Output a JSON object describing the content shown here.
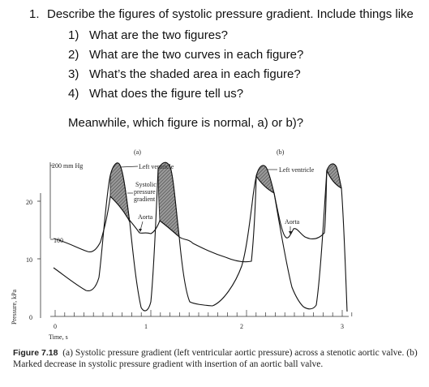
{
  "question": {
    "number": "1.",
    "text": "Describe the figures of systolic pressure gradient. Include things like",
    "items": [
      {
        "num": "1)",
        "text": "What are the two figures?"
      },
      {
        "num": "2)",
        "text": "What are the two curves in each figure?"
      },
      {
        "num": "3)",
        "text": "What’s the shaded area in each figure?"
      },
      {
        "num": "4)",
        "text": "What does the figure tell us?"
      }
    ],
    "followup": "Meanwhile, which figure is normal, a) or b)?"
  },
  "figure": {
    "panel_a": "(a)",
    "panel_b": "(b)",
    "mmhg_200": "200 mm Hg",
    "mmhg_100": "100",
    "kpa_20": "20",
    "kpa_10": "10",
    "zero": "0",
    "time_1": "1",
    "time_2": "2",
    "time_3": "3",
    "y_title": "Pressure, kPa",
    "x_title": "Time, s",
    "a_left_ventricle": "Left ventricle",
    "a_systolic_1": "Systolic",
    "a_systolic_2": "pressure",
    "a_systolic_3": "gradient",
    "a_aorta": "Aorta",
    "b_left_ventricle": "Left ventricle",
    "b_aorta": "Aorta"
  },
  "caption": {
    "label": "Figure 7.18",
    "text": "(a) Systolic pressure gradient (left ventricular aortic pressure) across a stenotic aortic valve. (b) Marked decrease in systolic pressure gradient with insertion of an aortic ball valve."
  }
}
